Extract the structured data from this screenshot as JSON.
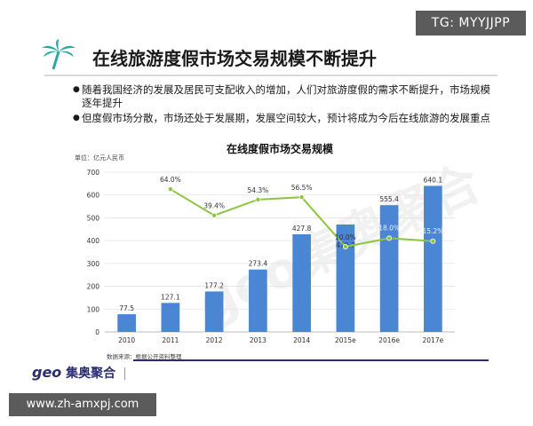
{
  "badge": "TG: MYYJJPP",
  "title": "在线旅游度假市场交易规模不断提升",
  "bullets": [
    "随着我国经济的发展及居民可支配收入的增加，人们对旅游度假的需求不断提升，市场规模逐年提升",
    "但度假市场分散，市场还处于发展期，发展空间较大，预计将成为今后在线旅游的发展重点"
  ],
  "footer": {
    "logo_geo": "geo",
    "logo_cn": "集奥聚合",
    "url": "www.zh-amxpj.com"
  },
  "watermark": "geo集奥聚合",
  "chart_data": {
    "type": "bar",
    "title": "在线度假市场交易规模",
    "unit_label": "单位：亿元人民币",
    "source": "数据来源：根据公开资料整理",
    "categories": [
      "2010",
      "2011",
      "2012",
      "2013",
      "2014",
      "2015e",
      "2016e",
      "2017e"
    ],
    "values": [
      77.5,
      127.1,
      177.2,
      273.4,
      427.8,
      470.7,
      555.4,
      640.1
    ],
    "value_labels": [
      "77.5",
      "127.1",
      "177.2",
      "273.4",
      "427.8",
      "470.7",
      "555.4",
      "640.1"
    ],
    "growth": [
      null,
      64.0,
      39.4,
      54.3,
      56.5,
      10.0,
      18.0,
      15.2
    ],
    "growth_labels": [
      "",
      "64.0%",
      "39.4%",
      "54.3%",
      "56.5%",
      "10.0%",
      "18.0%",
      "15.2%"
    ],
    "yticks": [
      0,
      100,
      200,
      300,
      400,
      500,
      600,
      700
    ],
    "ylim": [
      0,
      700
    ],
    "growth_ylim": [
      -70,
      80
    ],
    "grid": true,
    "colors": {
      "bar": "#4a86d4",
      "line": "#8cc63f"
    }
  }
}
